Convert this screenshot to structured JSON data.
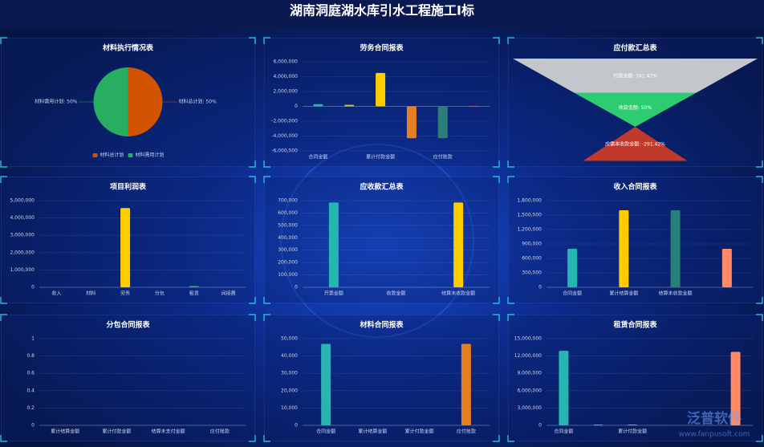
{
  "header": {
    "title": "湖南洞庭湖水库引水工程施工I标"
  },
  "watermark": {
    "name": "泛普软件",
    "url": "www.fanpusoft.com"
  },
  "chart_data": [
    {
      "type": "pie",
      "title": "材料执行情况表",
      "categories": [
        "材料总计划",
        "材料需用计划"
      ],
      "values": [
        50,
        50
      ],
      "value_labels": [
        "材料总计划: 50%",
        "材料需用计划: 50%"
      ],
      "colors": [
        "#d35400",
        "#27ae60"
      ],
      "legend": "bottom"
    },
    {
      "type": "bar",
      "title": "劳务合同报表",
      "categories": [
        "合同金额",
        null,
        "累计付款金额",
        null,
        "应付账款",
        null
      ],
      "values": [
        300000,
        200000,
        4500000,
        -4300000,
        -4300000,
        -50000
      ],
      "colors": [
        "#26b5b0",
        "#e0c31a",
        "#ffcc00",
        "#e67e22",
        "#2a7f7b",
        "#e57373"
      ],
      "ylim": [
        -6000000,
        6000000
      ],
      "yticks": [
        {
          "value": -6000000,
          "label": "-6,000,000"
        },
        {
          "value": -4000000,
          "label": "-4,000,000"
        },
        {
          "value": -2000000,
          "label": "-2,000,000"
        },
        0,
        {
          "value": 2000000,
          "label": "2,000,000"
        },
        {
          "value": 4000000,
          "label": "4,000,000"
        },
        {
          "value": 6000000,
          "label": "6,000,000"
        }
      ],
      "grid": true
    },
    {
      "type": "funnel",
      "title": "应付款汇总表",
      "categories": [
        "付款金额",
        "收款金额",
        "应需本收款金额"
      ],
      "values": [
        341.42,
        50,
        -291.42
      ],
      "value_labels": [
        "付款金额: 341.42%",
        "收款金额: 50%",
        "应需本收款金额: -291.42%"
      ],
      "colors": [
        "#c3c7cc",
        "#2ecc71",
        "#c0392b"
      ]
    },
    {
      "type": "bar",
      "title": "项目利润表",
      "categories": [
        "收入",
        "材料",
        "劳务",
        "分包",
        "租赁",
        "间接费"
      ],
      "values": [
        0,
        0,
        4570000,
        0,
        80000,
        0
      ],
      "colors": [
        "#26b5b0",
        "#26b5b0",
        "#ffcc00",
        "#26b5b0",
        "#26a17a",
        "#26b5b0"
      ],
      "ylim": [
        0,
        5000000
      ],
      "yticks": [
        0,
        {
          "value": 1000000,
          "label": "1,000,000"
        },
        {
          "value": 2000000,
          "label": "2,000,000"
        },
        {
          "value": 3000000,
          "label": "3,000,000"
        },
        {
          "value": 4000000,
          "label": "4,000,000"
        },
        {
          "value": 5000000,
          "label": "5,000,000"
        }
      ],
      "grid": true
    },
    {
      "type": "bar",
      "title": "应收款汇总表",
      "categories": [
        "开票金额",
        "收款金额",
        "结算未收款金额"
      ],
      "values": [
        685000,
        0,
        685000
      ],
      "colors": [
        "#26b5b0",
        "#e0c31a",
        "#ffcc00"
      ],
      "ylim": [
        0,
        700000
      ],
      "yticks": [
        0,
        {
          "value": 100000,
          "label": "100,000"
        },
        {
          "value": 200000,
          "label": "200,000"
        },
        {
          "value": 300000,
          "label": "300,000"
        },
        {
          "value": 400000,
          "label": "400,000"
        },
        {
          "value": 500000,
          "label": "500,000"
        },
        {
          "value": 600000,
          "label": "600,000"
        },
        {
          "value": 700000,
          "label": "700,000"
        }
      ],
      "grid": true
    },
    {
      "type": "bar",
      "title": "收入合同报表",
      "categories": [
        "合同金额",
        "累计结算金额",
        "结算未收款金额",
        null
      ],
      "values": [
        800000,
        1600000,
        1600000,
        800000
      ],
      "colors": [
        "#26b5b0",
        "#ffcc00",
        "#2a7f7b",
        "#ff8a65"
      ],
      "ylim": [
        0,
        1800000
      ],
      "yticks": [
        0,
        {
          "value": 300000,
          "label": "300,000"
        },
        {
          "value": 600000,
          "label": "600,000"
        },
        {
          "value": 900000,
          "label": "900,000"
        },
        {
          "value": 1200000,
          "label": "1,200,000"
        },
        {
          "value": 1500000,
          "label": "1,500,000"
        },
        {
          "value": 1800000,
          "label": "1,800,000"
        }
      ],
      "grid": true
    },
    {
      "type": "bar",
      "title": "分包合同报表",
      "categories": [
        "累计结算金额",
        "累计付款金额",
        "结算未支付金额",
        "应付账款"
      ],
      "values": [
        0,
        0,
        0,
        0
      ],
      "colors": [
        "#26b5b0",
        "#ffcc00",
        "#2a7f7b",
        "#ff8a65"
      ],
      "ylim": [
        0,
        1
      ],
      "yticks": [
        0,
        0.2,
        0.4,
        0.6,
        0.8,
        1
      ],
      "grid": true
    },
    {
      "type": "bar",
      "title": "材料合同报表",
      "categories": [
        "合同金额",
        "累计结算金额",
        "累计付款金额",
        "应付账款"
      ],
      "values": [
        47000,
        0,
        0,
        47000
      ],
      "colors": [
        "#26b5b0",
        "#ffcc00",
        "#2a7f7b",
        "#e67e22"
      ],
      "ylim": [
        0,
        50000
      ],
      "yticks": [
        0,
        {
          "value": 10000,
          "label": "10,000"
        },
        {
          "value": 20000,
          "label": "20,000"
        },
        {
          "value": 30000,
          "label": "30,000"
        },
        {
          "value": 40000,
          "label": "40,000"
        },
        {
          "value": 50000,
          "label": "50,000"
        }
      ],
      "grid": true
    },
    {
      "type": "bar",
      "title": "租赁合同报表",
      "categories": [
        "合同金额",
        null,
        "累计付款金额",
        null,
        null,
        null
      ],
      "values": [
        12900000,
        100000,
        100000,
        0,
        0,
        12700000
      ],
      "colors": [
        "#26b5b0",
        "#e0c31a",
        "#ffcc00",
        "#2a7f7b",
        "#2a7f7b",
        "#ff8a65"
      ],
      "ylim": [
        0,
        15000000
      ],
      "yticks": [
        0,
        {
          "value": 3000000,
          "label": "3,000,000"
        },
        {
          "value": 6000000,
          "label": "6,000,000"
        },
        {
          "value": 9000000,
          "label": "9,000,000"
        },
        {
          "value": 12000000,
          "label": "12,000,000"
        },
        {
          "value": 15000000,
          "label": "15,000,000"
        }
      ],
      "grid": true
    }
  ]
}
